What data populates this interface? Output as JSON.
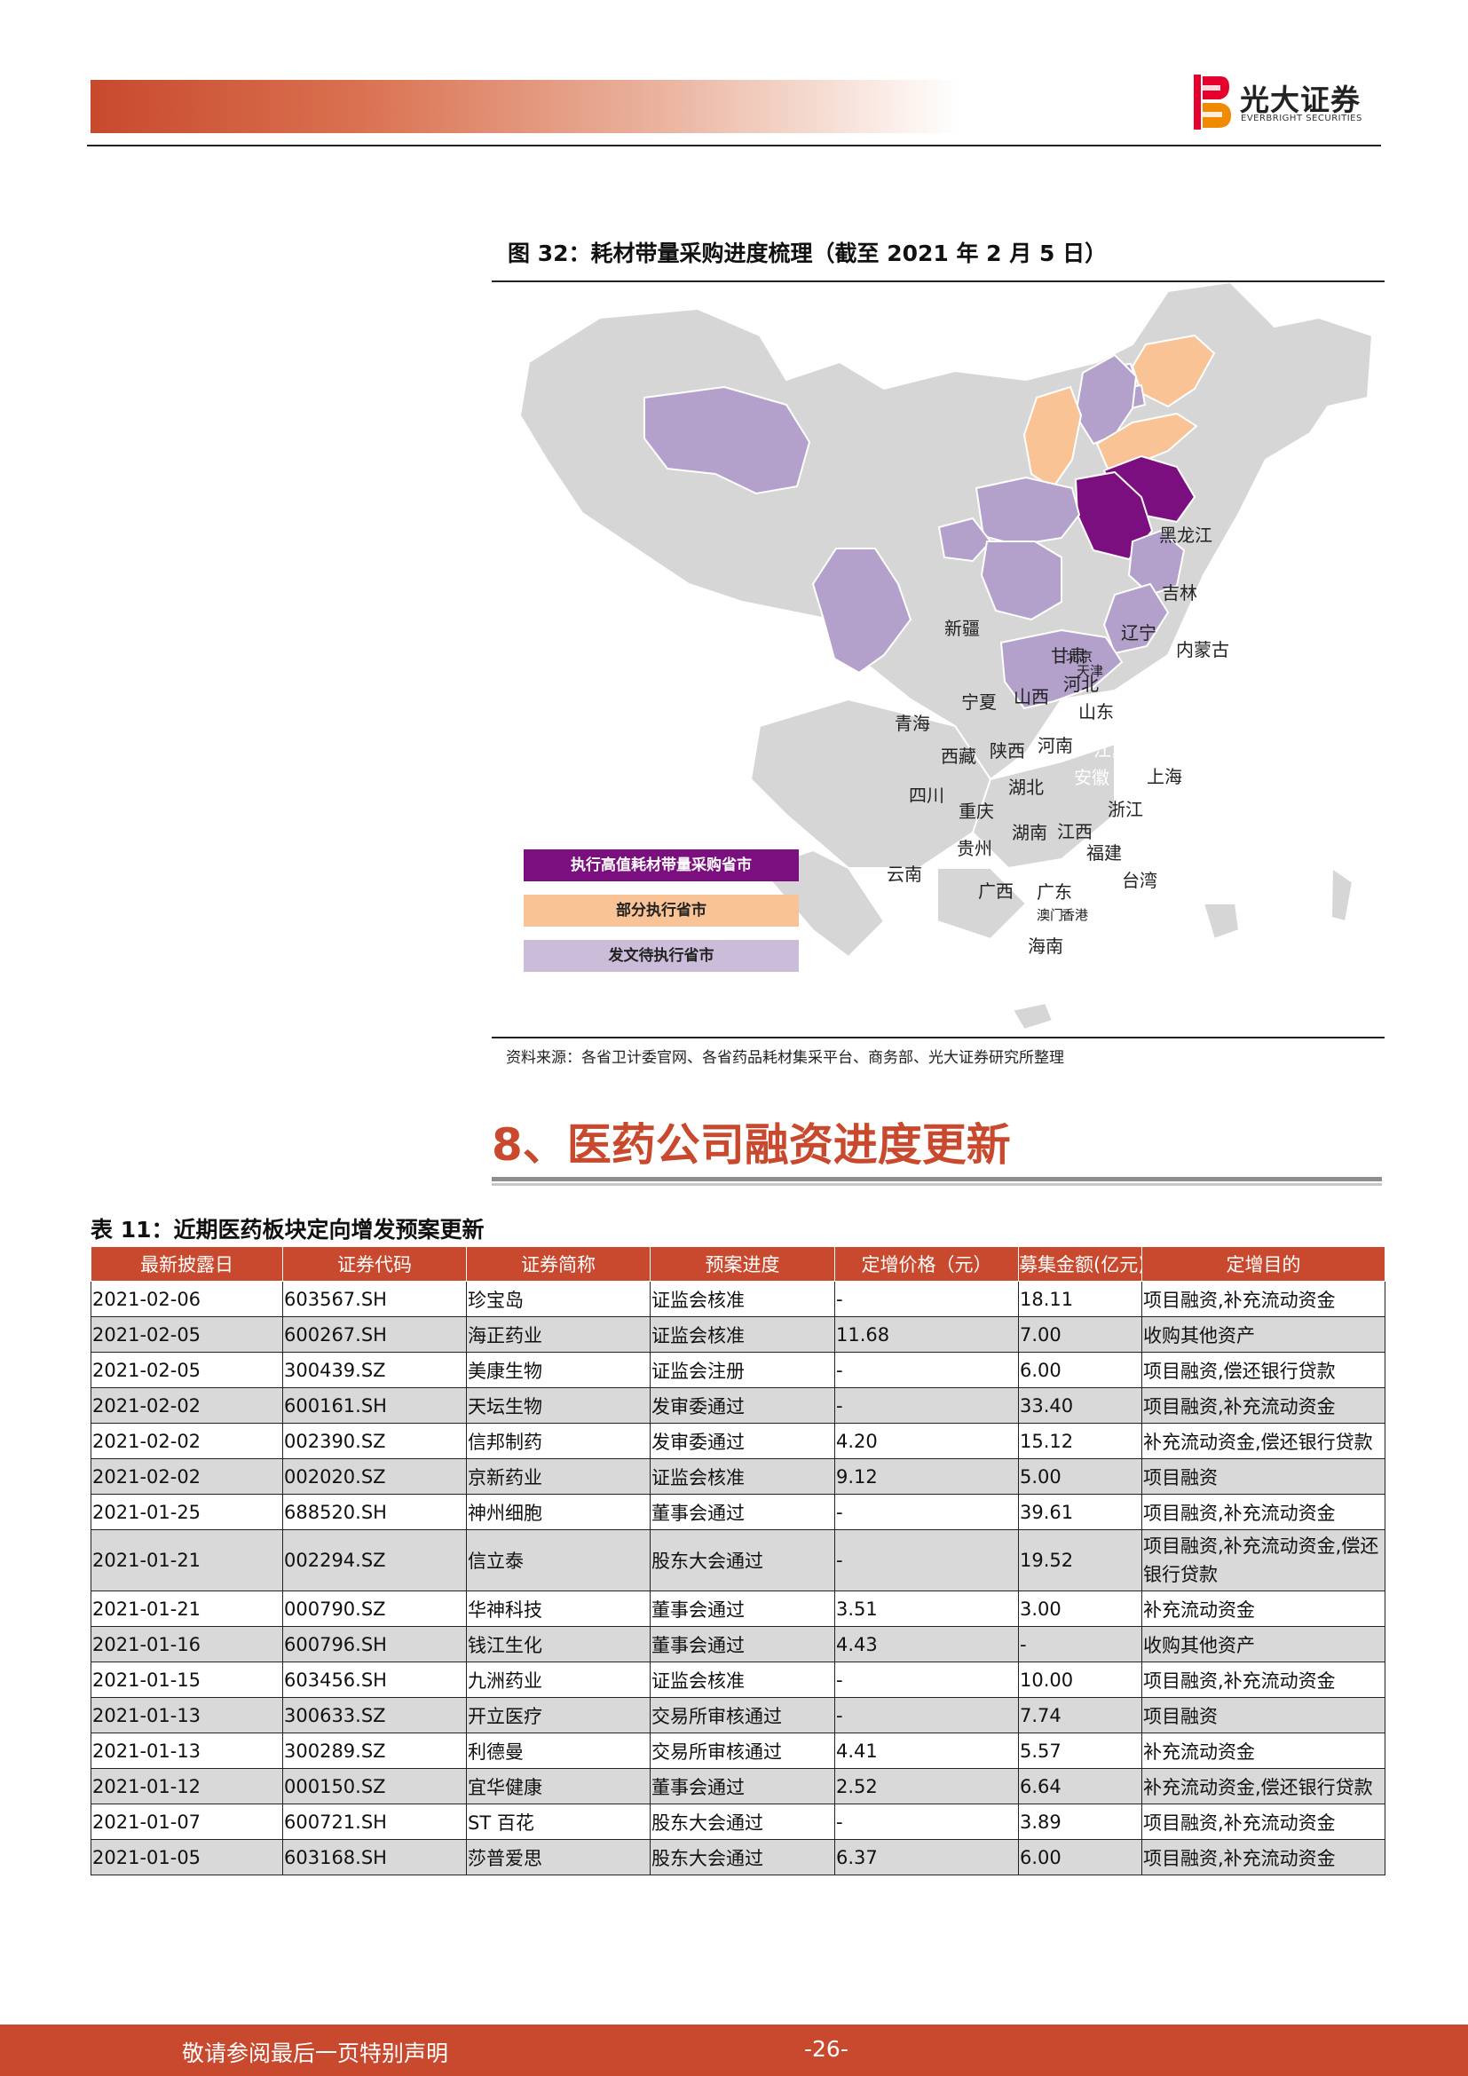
{
  "header": {
    "logo_cn": "光大证券",
    "logo_en": "EVERBRIGHT SECURITIES",
    "brand_color": "#c8492e"
  },
  "figure": {
    "title": "图 32：耗材带量采购进度梳理（截至 2021 年 2 月 5 日）",
    "source": "资料来源：各省卫计委官网、各省药品耗材集采平台、商务部、光大证券研究所整理",
    "legend": [
      {
        "label": "执行高值耗材带量采购省市",
        "color": "#7b0f7f"
      },
      {
        "label": "部分执行省市",
        "color": "#f9c396"
      },
      {
        "label": "发文待执行省市",
        "color": "#cbbcd9"
      }
    ],
    "provinces": [
      {
        "name": "新疆",
        "status": "none"
      },
      {
        "name": "西藏",
        "status": "none"
      },
      {
        "name": "甘肃",
        "status": "none"
      },
      {
        "name": "内蒙古",
        "status": "none"
      },
      {
        "name": "黑龙江",
        "status": "none"
      },
      {
        "name": "吉林",
        "status": "none"
      },
      {
        "name": "辽宁",
        "status": "partial"
      },
      {
        "name": "北京",
        "status": "pending"
      },
      {
        "name": "天津",
        "status": "pending"
      },
      {
        "name": "河北",
        "status": "pending"
      },
      {
        "name": "山西",
        "status": "partial"
      },
      {
        "name": "山东",
        "status": "partial"
      },
      {
        "name": "宁夏",
        "status": "none"
      },
      {
        "name": "青海",
        "status": "pending"
      },
      {
        "name": "陕西",
        "status": "none"
      },
      {
        "name": "河南",
        "status": "none"
      },
      {
        "name": "江苏",
        "status": "executing"
      },
      {
        "name": "安徽",
        "status": "executing"
      },
      {
        "name": "上海",
        "status": "none"
      },
      {
        "name": "四川",
        "status": "none"
      },
      {
        "name": "湖北",
        "status": "pending"
      },
      {
        "name": "重庆",
        "status": "pending"
      },
      {
        "name": "浙江",
        "status": "pending"
      },
      {
        "name": "湖南",
        "status": "pending"
      },
      {
        "name": "江西",
        "status": "none"
      },
      {
        "name": "贵州",
        "status": "none"
      },
      {
        "name": "福建",
        "status": "pending"
      },
      {
        "name": "云南",
        "status": "pending"
      },
      {
        "name": "广西",
        "status": "none"
      },
      {
        "name": "广东",
        "status": "pending"
      },
      {
        "name": "台湾",
        "status": "none"
      },
      {
        "name": "澳门",
        "status": "none"
      },
      {
        "name": "香港",
        "status": "none"
      },
      {
        "name": "海南",
        "status": "none"
      }
    ]
  },
  "section": {
    "title": "8、医药公司融资进度更新"
  },
  "table": {
    "title": "表 11：近期医药板块定向增发预案更新",
    "headers": [
      "最新披露日",
      "证券代码",
      "证券简称",
      "预案进度",
      "定增价格（元）",
      "募集金额(亿元)",
      "定增目的"
    ],
    "rows": [
      [
        "2021-02-06",
        "603567.SH",
        "珍宝岛",
        "证监会核准",
        "-",
        "18.11",
        "项目融资,补充流动资金"
      ],
      [
        "2021-02-05",
        "600267.SH",
        "海正药业",
        "证监会核准",
        "11.68",
        "7.00",
        "收购其他资产"
      ],
      [
        "2021-02-05",
        "300439.SZ",
        "美康生物",
        "证监会注册",
        "-",
        "6.00",
        "项目融资,偿还银行贷款"
      ],
      [
        "2021-02-02",
        "600161.SH",
        "天坛生物",
        "发审委通过",
        "-",
        "33.40",
        "项目融资,补充流动资金"
      ],
      [
        "2021-02-02",
        "002390.SZ",
        "信邦制药",
        "发审委通过",
        "4.20",
        "15.12",
        "补充流动资金,偿还银行贷款"
      ],
      [
        "2021-02-02",
        "002020.SZ",
        "京新药业",
        "证监会核准",
        "9.12",
        "5.00",
        "项目融资"
      ],
      [
        "2021-01-25",
        "688520.SH",
        "神州细胞",
        "董事会通过",
        "-",
        "39.61",
        "项目融资,补充流动资金"
      ],
      [
        "2021-01-21",
        "002294.SZ",
        "信立泰",
        "股东大会通过",
        "-",
        "19.52",
        "项目融资,补充流动资金,偿还银行贷款"
      ],
      [
        "2021-01-21",
        "000790.SZ",
        "华神科技",
        "董事会通过",
        "3.51",
        "3.00",
        "补充流动资金"
      ],
      [
        "2021-01-16",
        "600796.SH",
        "钱江生化",
        "董事会通过",
        "4.43",
        "-",
        "收购其他资产"
      ],
      [
        "2021-01-15",
        "603456.SH",
        "九洲药业",
        "证监会核准",
        "-",
        "10.00",
        "项目融资,补充流动资金"
      ],
      [
        "2021-01-13",
        "300633.SZ",
        "开立医疗",
        "交易所审核通过",
        "-",
        "7.74",
        "项目融资"
      ],
      [
        "2021-01-13",
        "300289.SZ",
        "利德曼",
        "交易所审核通过",
        "4.41",
        "5.57",
        "补充流动资金"
      ],
      [
        "2021-01-12",
        "000150.SZ",
        "宜华健康",
        "董事会通过",
        "2.52",
        "6.64",
        "补充流动资金,偿还银行贷款"
      ],
      [
        "2021-01-07",
        "600721.SH",
        "ST 百花",
        "股东大会通过",
        "-",
        "3.89",
        "项目融资,补充流动资金"
      ],
      [
        "2021-01-05",
        "603168.SH",
        "莎普爱思",
        "股东大会通过",
        "6.37",
        "6.00",
        "项目融资,补充流动资金"
      ]
    ]
  },
  "footer": {
    "disclaimer": "敬请参阅最后一页特别声明",
    "page": "-26-"
  }
}
